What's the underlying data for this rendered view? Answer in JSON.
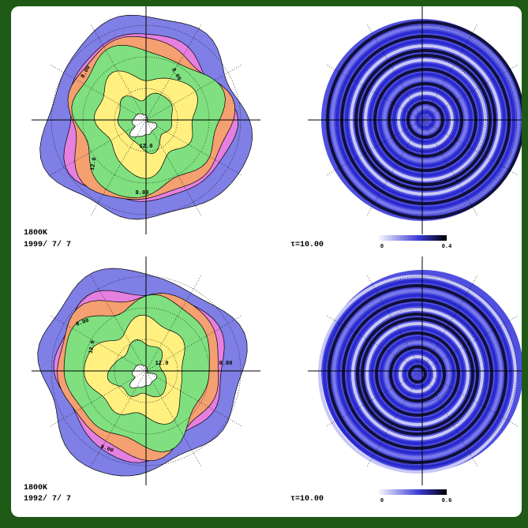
{
  "panels": [
    {
      "level": "1800K",
      "date": "1999/ 7/ 7",
      "tau": "τ=10.00",
      "colorbar": [
        "0",
        "0.4"
      ],
      "contours": [
        "8.00",
        "8.00",
        "12.0",
        "12.0",
        "8.00"
      ]
    },
    {
      "level": "1800K",
      "date": "1992/ 7/ 7",
      "tau": "τ=10.00",
      "colorbar": [
        "0",
        "0.6"
      ],
      "contours": [
        "8.00",
        "8.00",
        "12.0",
        "12.0",
        "8.00"
      ]
    }
  ]
}
